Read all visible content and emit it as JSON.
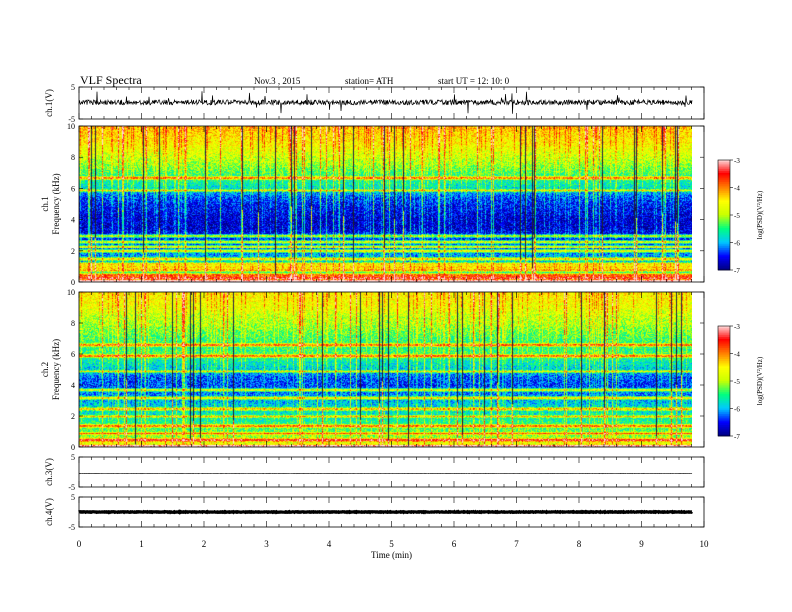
{
  "header": {
    "title": "VLF  Spectra",
    "date": "Nov.3  , 2015",
    "station": "station= ATH",
    "start_time": "start  UT  =   12: 10: 0"
  },
  "colors": {
    "spectrum": [
      "#000080",
      "#0000ff",
      "#00c8ff",
      "#00ff80",
      "#c8ff00",
      "#ffff00",
      "#ff8000",
      "#ff0000",
      "#ffdcdc"
    ],
    "background": "#ffffff",
    "trace": "#000000"
  },
  "chart_data": [
    {
      "type": "line",
      "name": "ch1-waveform",
      "ylabel": "ch.1(V)",
      "ylim": [
        -5,
        5
      ],
      "y_ticks": [
        "5",
        "-5"
      ],
      "x_range_min": [
        0,
        9.8
      ],
      "baseline_v": 0.2,
      "noise_amplitude_v": 1.6
    },
    {
      "type": "heatmap",
      "name": "ch1-spectrogram",
      "ylabel_channel": "ch.1",
      "ylabel": "Frequency  (kHz)",
      "ylim_khz": [
        0,
        10
      ],
      "y_ticks": [
        "0",
        "2",
        "4",
        "6",
        "8",
        "10"
      ],
      "x_range_min": [
        0,
        9.8
      ],
      "colorbar": {
        "label": "log(PSD)(V²/Hz)",
        "range": [
          -7,
          -3
        ],
        "ticks": [
          "-3",
          "-4",
          "-5",
          "-6",
          "-7"
        ]
      },
      "profile_khz": [
        0,
        0.5,
        1,
        1.5,
        2,
        2.5,
        3,
        3.5,
        4,
        4.5,
        5,
        5.5,
        6,
        6.5,
        7,
        7.5,
        8,
        8.5,
        9,
        9.5,
        10
      ],
      "profile_logpsd": [
        -4.2,
        -5.4,
        -5.8,
        -6.0,
        -6.2,
        -6.3,
        -6.5,
        -6.7,
        -6.7,
        -6.6,
        -6.5,
        -6.3,
        -5.8,
        -5.6,
        -5.4,
        -5.1,
        -4.9,
        -4.7,
        -4.5,
        -4.4,
        -4.2
      ],
      "lines_khz": [
        0.3,
        0.5,
        0.8,
        1.0,
        1.2,
        1.5,
        2.0,
        2.3,
        2.6,
        3.0,
        5.9,
        6.7
      ]
    },
    {
      "type": "heatmap",
      "name": "ch2-spectrogram",
      "ylabel_channel": "ch.2",
      "ylabel": "Frequency  (kHz)",
      "ylim_khz": [
        0,
        10
      ],
      "y_ticks": [
        "0",
        "2",
        "4",
        "6",
        "8",
        "10"
      ],
      "x_range_min": [
        0,
        9.8
      ],
      "colorbar": {
        "label": "log(PSD)(V²/Hz)",
        "range": [
          -7,
          -3
        ],
        "ticks": [
          "-3",
          "-4",
          "-5",
          "-6",
          "-7"
        ]
      },
      "profile_khz": [
        0,
        0.5,
        1,
        1.5,
        2,
        2.5,
        3,
        3.5,
        4,
        4.5,
        5,
        5.5,
        6,
        6.5,
        7,
        7.5,
        8,
        8.5,
        9,
        9.5,
        10
      ],
      "profile_logpsd": [
        -4.4,
        -5.0,
        -5.3,
        -5.5,
        -5.7,
        -5.8,
        -6.0,
        -6.2,
        -6.4,
        -6.3,
        -5.9,
        -5.7,
        -5.4,
        -5.5,
        -5.4,
        -5.2,
        -5.0,
        -4.9,
        -4.7,
        -4.6,
        -4.5
      ],
      "lines_khz": [
        0.5,
        0.9,
        1.4,
        2.0,
        2.5,
        3.2,
        3.7,
        4.9,
        5.9,
        6.6
      ]
    },
    {
      "type": "line",
      "name": "ch3-waveform",
      "ylabel": "ch.3(V)",
      "ylim": [
        -5,
        5
      ],
      "y_ticks": [
        "5",
        "-5"
      ],
      "x_range_min": [
        0,
        9.8
      ],
      "baseline_v": -0.5,
      "noise_amplitude_v": 0.15
    },
    {
      "type": "line",
      "name": "ch4-waveform",
      "ylabel": "ch.4(V)",
      "ylim": [
        -5,
        5
      ],
      "y_ticks": [
        "5",
        "-5"
      ],
      "x_range_min": [
        0,
        9.8
      ],
      "baseline_v": 0,
      "noise_amplitude_v": 0.2
    }
  ],
  "x_axis": {
    "label": "Time  (min)",
    "range": [
      0,
      10
    ],
    "ticks": [
      "0",
      "1",
      "2",
      "3",
      "4",
      "5",
      "6",
      "7",
      "8",
      "9",
      "10"
    ]
  }
}
